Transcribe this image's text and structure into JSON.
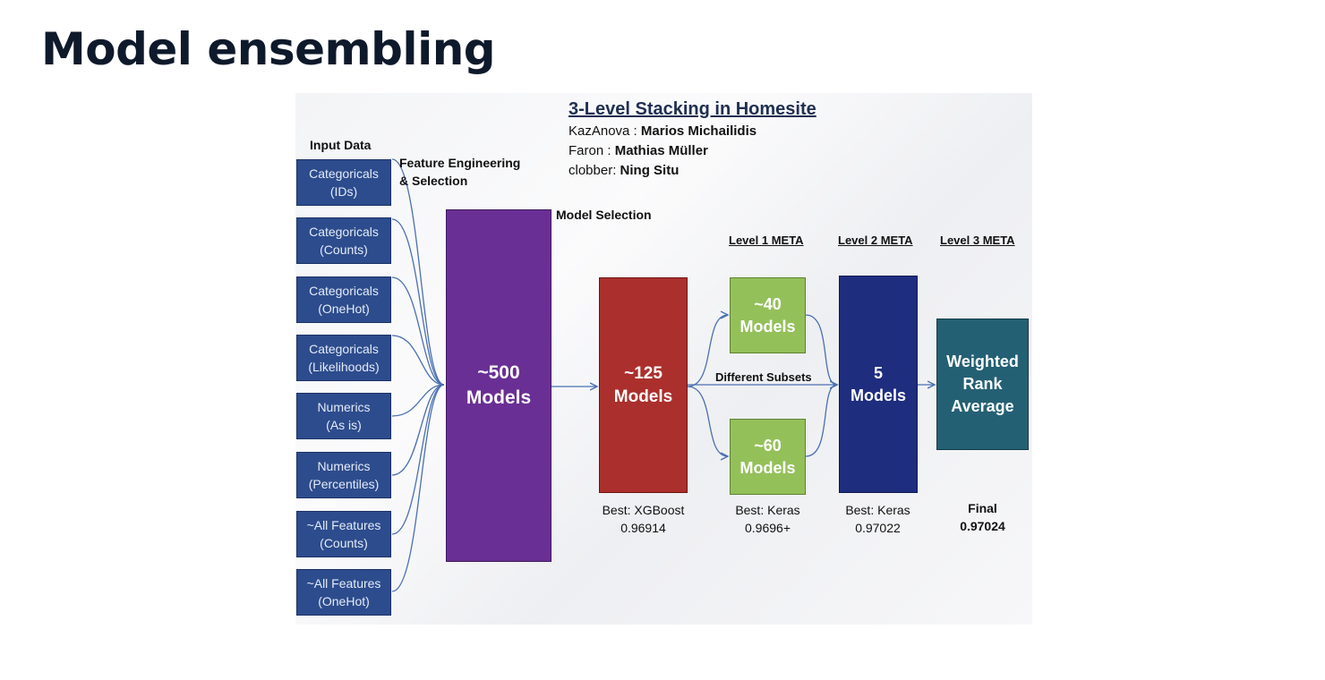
{
  "slide": {
    "title": "Model ensembling"
  },
  "figure": {
    "title": "3-Level Stacking in Homesite",
    "credits": [
      {
        "handle": "KazAnova",
        "name": "Marios  Michailidis"
      },
      {
        "handle": "Faron",
        "name": "Mathias  Müller"
      },
      {
        "handle": "clobber",
        "name": "Ning Situ"
      }
    ],
    "labels": {
      "input_data": "Input Data",
      "feature_engineering_1": "Feature Engineering",
      "feature_engineering_2": "& Selection",
      "model_selection": "Model Selection",
      "different_subsets": "Different Subsets",
      "level1": "Level 1 META",
      "level2": "Level 2 META",
      "level3": "Level 3 META"
    },
    "inputs": [
      {
        "line1": "Categoricals",
        "line2": "(IDs)"
      },
      {
        "line1": "Categoricals",
        "line2": "(Counts)"
      },
      {
        "line1": "Categoricals",
        "line2": "(OneHot)"
      },
      {
        "line1": "Categoricals",
        "line2": "(Likelihoods)"
      },
      {
        "line1": "Numerics",
        "line2": "(As is)"
      },
      {
        "line1": "Numerics",
        "line2": "(Percentiles)"
      },
      {
        "line1": "~All Features",
        "line2": "(Counts)"
      },
      {
        "line1": "~All Features",
        "line2": "(OneHot)"
      }
    ],
    "boxes": {
      "m500": {
        "line1": "~500",
        "line2": "Models"
      },
      "m125": {
        "line1": "~125",
        "line2": "Models"
      },
      "m40": {
        "line1": "~40",
        "line2": "Models"
      },
      "m60": {
        "line1": "~60",
        "line2": "Models"
      },
      "m5": {
        "line1": "5",
        "line2": "Models"
      },
      "weighted": {
        "line1": "Weighted",
        "line2": "Rank",
        "line3": "Average"
      }
    },
    "results": {
      "xgboost": {
        "label": "Best: XGBoost",
        "value": "0.96914"
      },
      "level1": {
        "label": "Best: Keras",
        "value": "0.9696+"
      },
      "level2": {
        "label": "Best: Keras",
        "value": "0.97022"
      },
      "final": {
        "label": "Final",
        "value": "0.97024"
      }
    },
    "colors": {
      "input_box": "#2d4c8d",
      "models_500": "#6a2f94",
      "models_125": "#ab2f2c",
      "level1_boxes": "#94c05a",
      "level2_box": "#1f2d7f",
      "level3_box": "#246074",
      "connector": "#4a6fb0"
    }
  }
}
